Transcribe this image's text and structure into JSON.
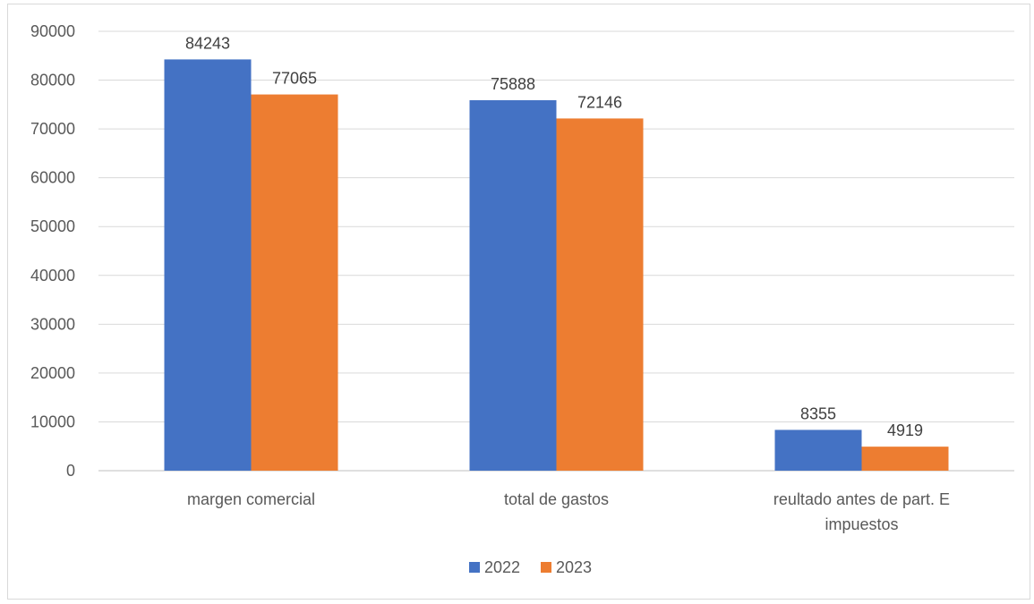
{
  "chart_data": {
    "type": "bar",
    "categories": [
      "margen comercial",
      "total de gastos",
      "reultado antes de part. E impuestos"
    ],
    "series": [
      {
        "name": "2022",
        "values": [
          84243,
          75888,
          8355
        ],
        "color": "#4472C4"
      },
      {
        "name": "2023",
        "values": [
          77065,
          72146,
          4919
        ],
        "color": "#ED7D31"
      }
    ],
    "yticks": [
      "0",
      "10000",
      "20000",
      "30000",
      "40000",
      "50000",
      "60000",
      "70000",
      "80000",
      "90000"
    ],
    "ylim": [
      0,
      90000
    ],
    "grid": true,
    "legend_position": "bottom",
    "gridline_color": "#d9d9d9",
    "axis_color": "#bfbfbf"
  }
}
